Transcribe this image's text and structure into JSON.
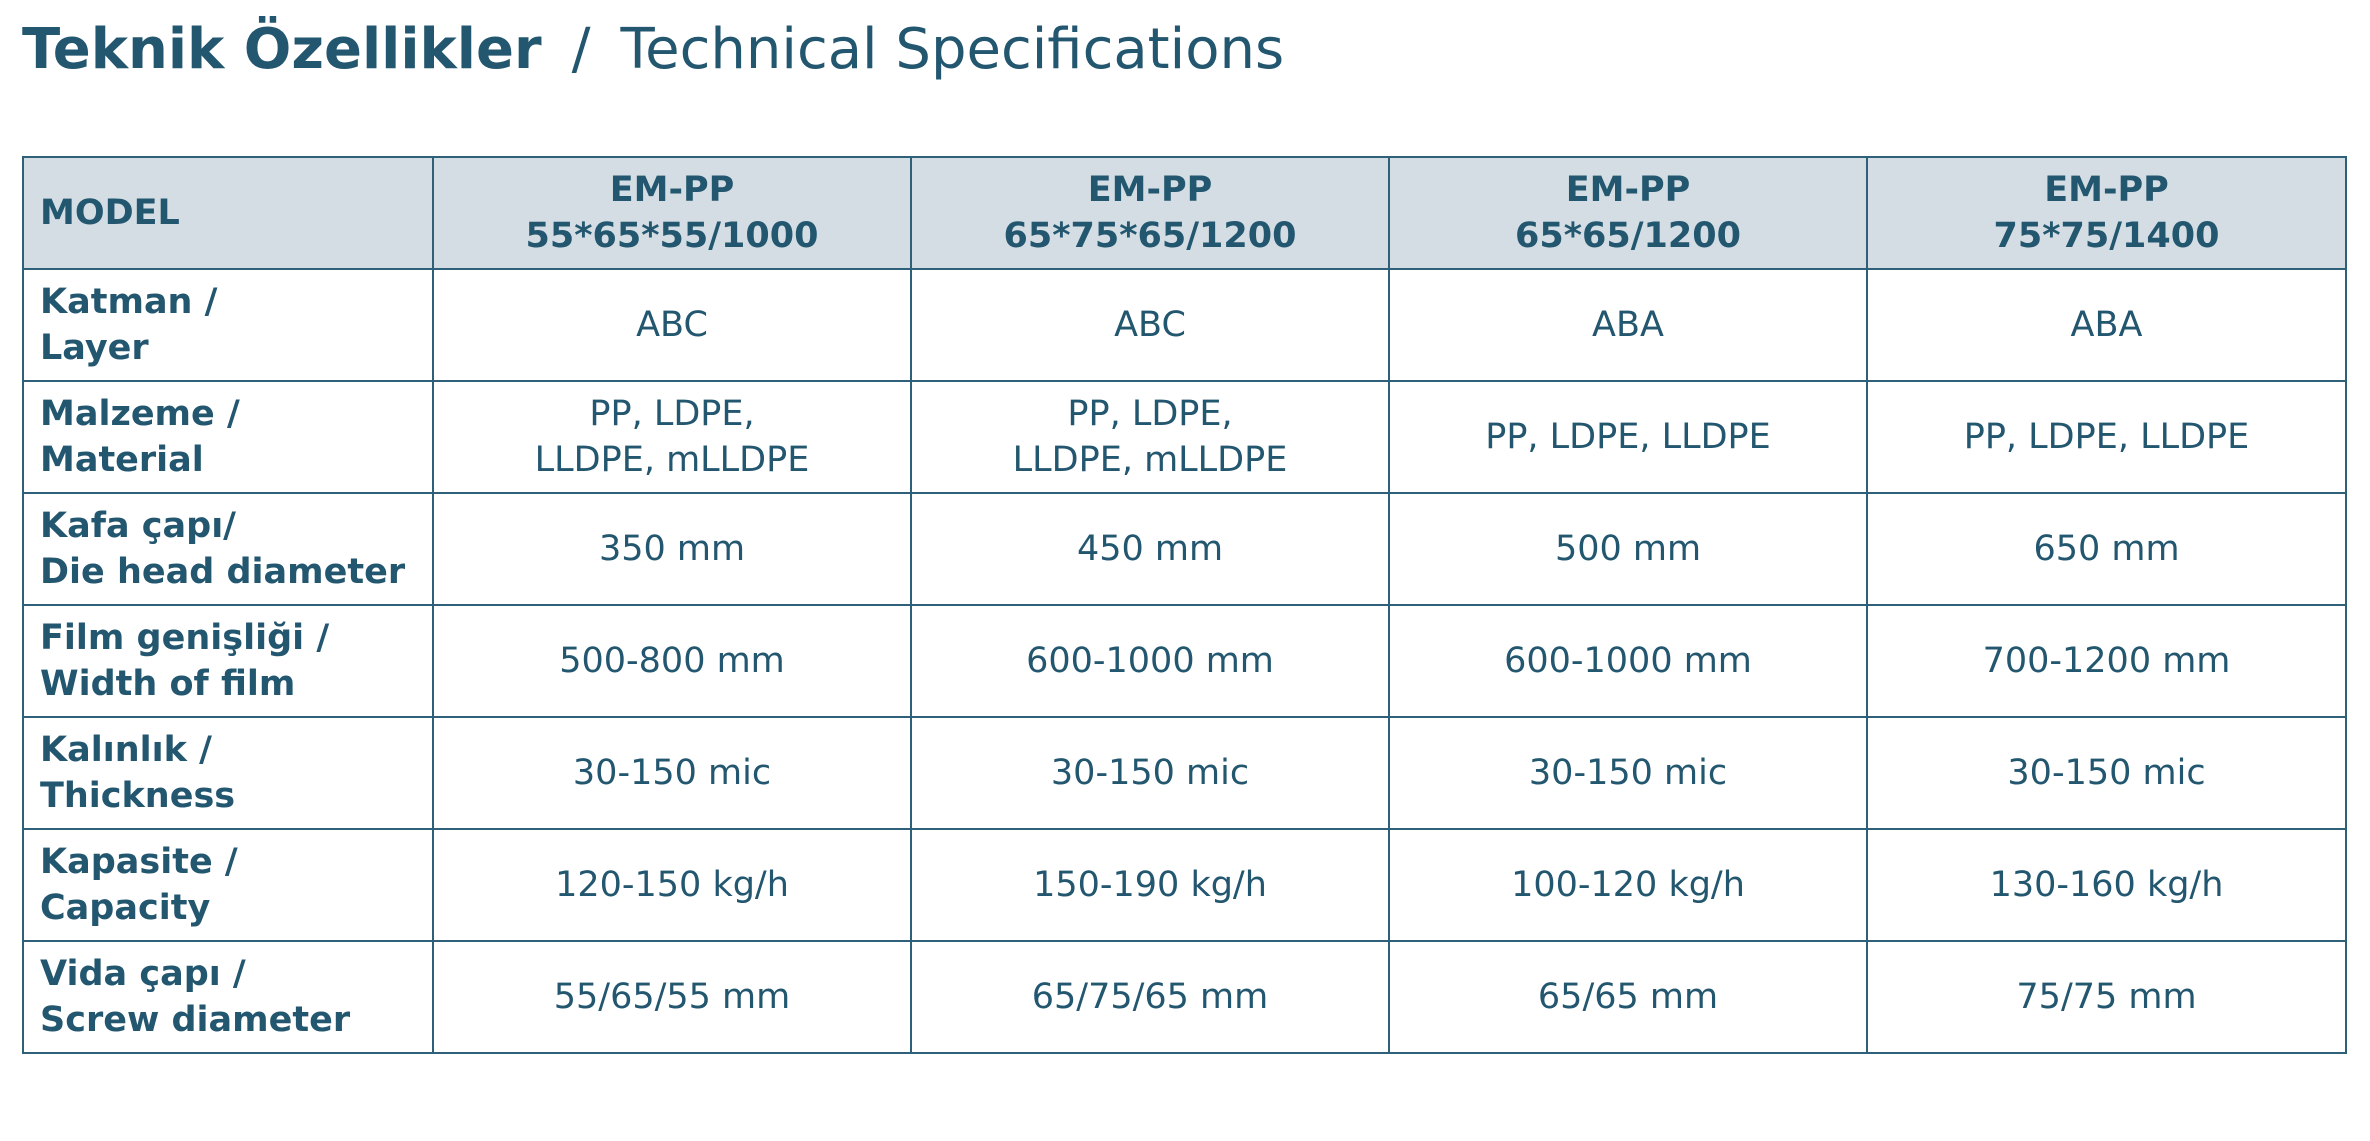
{
  "title": {
    "turkish": "Teknik Özellikler",
    "separator": "/",
    "english": "Technical Specifications"
  },
  "table": {
    "header": {
      "model_label": "MODEL",
      "models": [
        {
          "line1": "EM-PP",
          "line2": "55*65*55/1000"
        },
        {
          "line1": "EM-PP",
          "line2": "65*75*65/1200"
        },
        {
          "line1": "EM-PP",
          "line2": "65*65/1200"
        },
        {
          "line1": "EM-PP",
          "line2": "75*75/1400"
        }
      ]
    },
    "rows": [
      {
        "label_tr": "Katman /",
        "label_en": "Layer",
        "values": [
          {
            "line1": "ABC",
            "line2": ""
          },
          {
            "line1": "ABC",
            "line2": ""
          },
          {
            "line1": "ABA",
            "line2": ""
          },
          {
            "line1": "ABA",
            "line2": ""
          }
        ]
      },
      {
        "label_tr": "Malzeme /",
        "label_en": "Material",
        "values": [
          {
            "line1": "PP, LDPE,",
            "line2": "LLDPE, mLLDPE"
          },
          {
            "line1": "PP, LDPE,",
            "line2": "LLDPE, mLLDPE"
          },
          {
            "line1": "PP, LDPE, LLDPE",
            "line2": ""
          },
          {
            "line1": "PP, LDPE, LLDPE",
            "line2": ""
          }
        ]
      },
      {
        "label_tr": "Kafa çapı/",
        "label_en": "Die head diameter",
        "values": [
          {
            "line1": "350 mm",
            "line2": ""
          },
          {
            "line1": "450 mm",
            "line2": ""
          },
          {
            "line1": "500 mm",
            "line2": ""
          },
          {
            "line1": "650 mm",
            "line2": ""
          }
        ]
      },
      {
        "label_tr": "Film genişliği /",
        "label_en": "Width of film",
        "values": [
          {
            "line1": "500-800 mm",
            "line2": ""
          },
          {
            "line1": "600-1000 mm",
            "line2": ""
          },
          {
            "line1": "600-1000 mm",
            "line2": ""
          },
          {
            "line1": "700-1200 mm",
            "line2": ""
          }
        ]
      },
      {
        "label_tr": "Kalınlık /",
        "label_en": "Thickness",
        "values": [
          {
            "line1": "30-150 mic",
            "line2": ""
          },
          {
            "line1": "30-150 mic",
            "line2": ""
          },
          {
            "line1": "30-150 mic",
            "line2": ""
          },
          {
            "line1": "30-150 mic",
            "line2": ""
          }
        ]
      },
      {
        "label_tr": "Kapasite /",
        "label_en": "Capacity",
        "values": [
          {
            "line1": "120-150 kg/h",
            "line2": ""
          },
          {
            "line1": "150-190 kg/h",
            "line2": ""
          },
          {
            "line1": "100-120 kg/h",
            "line2": ""
          },
          {
            "line1": "130-160 kg/h",
            "line2": ""
          }
        ]
      },
      {
        "label_tr": "Vida çapı /",
        "label_en": "Screw diameter",
        "values": [
          {
            "line1": "55/65/55 mm",
            "line2": ""
          },
          {
            "line1": "65/75/65 mm",
            "line2": ""
          },
          {
            "line1": "65/65 mm",
            "line2": ""
          },
          {
            "line1": "75/75 mm",
            "line2": ""
          }
        ]
      }
    ]
  },
  "colors": {
    "text": "#23566f",
    "border": "#2f607a",
    "header_bg": "#d3dde3",
    "background": "#ffffff"
  }
}
